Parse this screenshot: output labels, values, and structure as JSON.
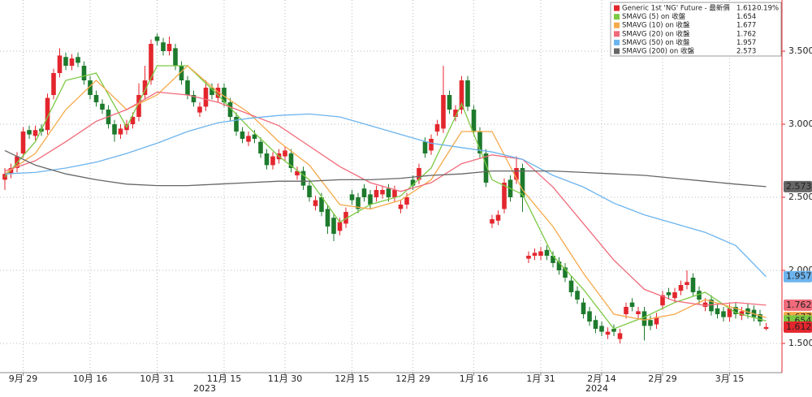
{
  "chart_data": {
    "type": "candlestick",
    "candle_name": "Generic 1st 'NG' Future - 最新價",
    "last_change_label": "-0.19%",
    "up_color": "#e3262d",
    "down_color": "#1d7a2c",
    "categories": [
      null,
      null,
      null,
      "9月 29",
      null,
      null,
      null,
      null,
      null,
      null,
      null,
      null,
      null,
      null,
      "10月 16",
      null,
      null,
      null,
      null,
      null,
      null,
      null,
      null,
      null,
      null,
      "10月 31",
      null,
      null,
      null,
      null,
      null,
      null,
      null,
      null,
      null,
      null,
      "11月 15",
      null,
      null,
      null,
      null,
      null,
      null,
      null,
      null,
      null,
      "11月 30",
      null,
      null,
      null,
      null,
      null,
      null,
      null,
      null,
      null,
      null,
      "12月 15",
      null,
      null,
      null,
      null,
      null,
      null,
      null,
      null,
      null,
      "12月 29",
      null,
      null,
      null,
      null,
      null,
      null,
      null,
      null,
      null,
      "1月 16",
      null,
      null,
      null,
      null,
      null,
      null,
      null,
      null,
      null,
      null,
      "1月 31",
      null,
      null,
      null,
      null,
      null,
      null,
      null,
      null,
      null,
      "2月 14",
      null,
      null,
      null,
      null,
      null,
      null,
      null,
      null,
      null,
      "2月 29",
      null,
      null,
      null,
      null,
      null,
      null,
      null,
      null,
      null,
      null,
      "3月 15",
      null,
      null,
      null,
      null,
      null,
      null
    ],
    "x_year_labels": [
      "2023",
      "2024"
    ],
    "open": [
      2.62,
      2.66,
      2.7,
      2.8,
      2.96,
      2.92,
      2.97,
      2.96,
      3.2,
      3.35,
      3.46,
      3.4,
      3.46,
      3.4,
      3.3,
      3.2,
      3.14,
      3.1,
      3.0,
      2.93,
      2.96,
      3.0,
      3.05,
      3.2,
      3.3,
      3.6,
      3.56,
      3.5,
      3.52,
      3.4,
      3.3,
      3.2,
      3.08,
      3.12,
      3.25,
      3.18,
      3.25,
      3.15,
      3.05,
      2.95,
      2.88,
      2.93,
      2.88,
      2.8,
      2.72,
      2.76,
      2.78,
      2.8,
      2.65,
      2.68,
      2.58,
      2.44,
      2.5,
      2.42,
      2.36,
      2.27,
      2.32,
      2.52,
      2.5,
      2.56,
      2.52,
      2.5,
      2.52,
      2.56,
      2.5,
      2.42,
      2.45,
      2.62,
      2.62,
      2.88,
      2.82,
      2.95,
      2.97,
      3.2,
      3.05,
      3.1,
      3.3,
      3.1,
      2.95,
      2.8,
      2.32,
      2.34,
      2.42,
      2.62,
      2.62,
      2.7,
      2.08,
      2.1,
      2.1,
      2.14,
      2.1,
      2.06,
      2.02,
      1.93,
      1.86,
      1.78,
      1.72,
      1.66,
      1.62,
      1.56,
      1.6,
      1.53,
      1.7,
      1.78,
      1.7,
      1.72,
      1.66,
      1.63,
      1.76,
      1.85,
      1.81,
      1.86,
      1.9,
      1.95,
      1.86,
      1.75,
      1.8,
      1.74,
      1.72,
      1.68,
      1.75,
      1.69,
      1.74,
      1.73,
      1.7,
      1.6
    ],
    "high": [
      2.7,
      2.73,
      2.81,
      2.98,
      2.99,
      2.99,
      3.0,
      3.21,
      3.38,
      3.52,
      3.49,
      3.48,
      3.49,
      3.43,
      3.33,
      3.23,
      3.17,
      3.13,
      3.03,
      3.0,
      3.03,
      3.08,
      3.28,
      3.4,
      3.58,
      3.62,
      3.59,
      3.6,
      3.55,
      3.43,
      3.33,
      3.23,
      3.15,
      3.3,
      3.28,
      3.28,
      3.28,
      3.18,
      3.08,
      2.98,
      2.95,
      2.96,
      2.91,
      2.83,
      2.81,
      2.83,
      2.85,
      2.83,
      2.71,
      2.71,
      2.61,
      2.51,
      2.53,
      2.45,
      2.39,
      2.36,
      2.43,
      2.55,
      2.53,
      2.59,
      2.55,
      2.58,
      2.58,
      2.59,
      2.58,
      2.48,
      2.53,
      2.65,
      2.73,
      2.91,
      2.93,
      3.03,
      3.4,
      3.23,
      3.13,
      3.33,
      3.33,
      3.13,
      2.98,
      2.83,
      2.38,
      2.41,
      2.63,
      2.65,
      2.78,
      2.73,
      2.13,
      2.15,
      2.16,
      2.17,
      2.13,
      2.09,
      2.05,
      1.96,
      1.89,
      1.81,
      1.75,
      1.69,
      1.65,
      1.61,
      1.63,
      1.6,
      1.78,
      1.81,
      1.75,
      1.75,
      1.69,
      1.71,
      1.86,
      1.88,
      1.88,
      1.93,
      2.0,
      1.98,
      1.89,
      1.81,
      1.83,
      1.77,
      1.75,
      1.77,
      1.78,
      1.75,
      1.77,
      1.76,
      1.73,
      1.64
    ],
    "low": [
      2.55,
      2.63,
      2.67,
      2.77,
      2.9,
      2.89,
      2.92,
      2.93,
      3.17,
      3.32,
      3.37,
      3.37,
      3.39,
      3.27,
      3.17,
      3.12,
      3.07,
      2.97,
      2.88,
      2.9,
      2.93,
      2.97,
      3.02,
      3.17,
      3.27,
      3.54,
      3.47,
      3.47,
      3.37,
      3.27,
      3.17,
      3.12,
      3.05,
      3.09,
      3.17,
      3.15,
      3.12,
      3.02,
      2.92,
      2.87,
      2.85,
      2.87,
      2.77,
      2.69,
      2.69,
      2.73,
      2.75,
      2.67,
      2.62,
      2.55,
      2.47,
      2.41,
      2.37,
      2.25,
      2.2,
      2.24,
      2.29,
      2.45,
      2.39,
      2.47,
      2.42,
      2.47,
      2.49,
      2.47,
      2.47,
      2.39,
      2.42,
      2.55,
      2.59,
      2.77,
      2.79,
      2.92,
      2.94,
      3.07,
      3.02,
      3.07,
      3.09,
      2.92,
      2.77,
      2.57,
      2.29,
      2.31,
      2.39,
      2.47,
      2.59,
      2.4,
      2.05,
      2.07,
      2.07,
      2.07,
      2.02,
      1.97,
      1.92,
      1.82,
      1.77,
      1.67,
      1.62,
      1.57,
      1.55,
      1.53,
      1.55,
      1.5,
      1.67,
      1.72,
      1.67,
      1.52,
      1.59,
      1.6,
      1.73,
      1.8,
      1.78,
      1.83,
      1.87,
      1.82,
      1.77,
      1.72,
      1.69,
      1.67,
      1.65,
      1.65,
      1.67,
      1.66,
      1.67,
      1.65,
      1.62,
      1.59
    ],
    "close": [
      2.66,
      2.7,
      2.78,
      2.95,
      2.93,
      2.96,
      2.95,
      3.18,
      3.35,
      3.47,
      3.4,
      3.45,
      3.42,
      3.3,
      3.2,
      3.15,
      3.1,
      3.0,
      2.93,
      2.97,
      3.0,
      3.05,
      3.2,
      3.3,
      3.55,
      3.57,
      3.5,
      3.55,
      3.4,
      3.3,
      3.2,
      3.15,
      3.12,
      3.25,
      3.2,
      3.25,
      3.15,
      3.05,
      2.95,
      2.9,
      2.92,
      2.9,
      2.8,
      2.72,
      2.78,
      2.8,
      2.82,
      2.7,
      2.68,
      2.58,
      2.5,
      2.48,
      2.4,
      2.3,
      2.25,
      2.33,
      2.4,
      2.48,
      2.42,
      2.5,
      2.45,
      2.55,
      2.55,
      2.5,
      2.55,
      2.45,
      2.5,
      2.58,
      2.7,
      2.8,
      2.9,
      3.0,
      3.2,
      3.1,
      3.1,
      3.3,
      3.12,
      2.95,
      2.8,
      2.6,
      2.35,
      2.38,
      2.6,
      2.5,
      2.7,
      2.5,
      2.1,
      2.12,
      2.13,
      2.1,
      2.05,
      2.0,
      1.95,
      1.85,
      1.8,
      1.7,
      1.65,
      1.6,
      1.58,
      1.58,
      1.58,
      1.57,
      1.75,
      1.75,
      1.72,
      1.62,
      1.62,
      1.68,
      1.83,
      1.83,
      1.85,
      1.9,
      1.92,
      1.85,
      1.8,
      1.78,
      1.72,
      1.7,
      1.68,
      1.74,
      1.7,
      1.72,
      1.7,
      1.68,
      1.65,
      1.612
    ],
    "series": [
      {
        "name": "SMAVG (5)  on 收盤",
        "color": "#7cc943",
        "x": [
          0,
          5,
          10,
          15,
          20,
          25,
          30,
          35,
          40,
          45,
          50,
          55,
          60,
          65,
          70,
          75,
          80,
          85,
          90,
          95,
          100,
          105,
          110,
          115,
          120,
          125
        ],
        "values": [
          2.64,
          2.88,
          3.3,
          3.35,
          2.98,
          3.4,
          3.4,
          3.2,
          2.98,
          2.78,
          2.62,
          2.33,
          2.45,
          2.51,
          2.7,
          3.14,
          2.62,
          2.52,
          2.1,
          1.87,
          1.6,
          1.68,
          1.78,
          1.85,
          1.71,
          1.654
        ]
      },
      {
        "name": "SMAVG (10)  on 收盤",
        "color": "#f5a94a",
        "x": [
          0,
          5,
          10,
          15,
          20,
          25,
          30,
          35,
          40,
          45,
          50,
          55,
          60,
          65,
          70,
          75,
          80,
          85,
          90,
          95,
          100,
          105,
          110,
          115,
          120,
          125
        ],
        "values": [
          2.66,
          2.8,
          3.1,
          3.3,
          3.1,
          3.2,
          3.4,
          3.22,
          3.08,
          2.88,
          2.72,
          2.45,
          2.42,
          2.48,
          2.62,
          2.95,
          2.95,
          2.55,
          2.3,
          1.98,
          1.7,
          1.66,
          1.7,
          1.8,
          1.74,
          1.677
        ]
      },
      {
        "name": "SMAVG (20)  on 收盤",
        "color": "#f06a7a",
        "x": [
          0,
          5,
          10,
          15,
          20,
          25,
          30,
          35,
          40,
          45,
          50,
          55,
          60,
          65,
          70,
          75,
          80,
          85,
          90,
          95,
          100,
          105,
          110,
          115,
          120,
          125
        ],
        "values": [
          2.68,
          2.75,
          2.88,
          3.02,
          3.1,
          3.22,
          3.2,
          3.15,
          3.07,
          2.99,
          2.85,
          2.71,
          2.6,
          2.54,
          2.6,
          2.73,
          2.79,
          2.76,
          2.57,
          2.32,
          2.07,
          1.87,
          1.79,
          1.76,
          1.78,
          1.762
        ]
      },
      {
        "name": "SMAVG (50)  on 收盤",
        "color": "#6cb4ee",
        "x": [
          0,
          5,
          10,
          15,
          20,
          25,
          30,
          35,
          40,
          45,
          50,
          55,
          60,
          65,
          70,
          75,
          80,
          85,
          90,
          95,
          100,
          105,
          110,
          115,
          120,
          125
        ],
        "values": [
          2.66,
          2.67,
          2.7,
          2.74,
          2.8,
          2.87,
          2.95,
          3.01,
          3.04,
          3.06,
          3.07,
          3.05,
          2.99,
          2.93,
          2.87,
          2.84,
          2.81,
          2.76,
          2.65,
          2.57,
          2.46,
          2.38,
          2.32,
          2.26,
          2.17,
          1.957
        ]
      },
      {
        "name": "SMAVG (200)  on 收盤",
        "color": "#666666",
        "x": [
          0,
          5,
          10,
          15,
          20,
          25,
          30,
          35,
          40,
          45,
          50,
          55,
          60,
          65,
          70,
          75,
          80,
          85,
          90,
          95,
          100,
          105,
          110,
          115,
          120,
          125
        ],
        "values": [
          2.82,
          2.72,
          2.66,
          2.62,
          2.59,
          2.58,
          2.58,
          2.59,
          2.6,
          2.61,
          2.61,
          2.62,
          2.62,
          2.63,
          2.65,
          2.66,
          2.68,
          2.68,
          2.68,
          2.67,
          2.66,
          2.65,
          2.63,
          2.61,
          2.59,
          2.573
        ]
      }
    ],
    "ylim": [
      1.3,
      3.85
    ],
    "yticks": [
      {
        "value": 1.5,
        "label": "1.500"
      },
      {
        "value": 2,
        "label": "2.000"
      },
      {
        "value": 2.5,
        "label": "2.500"
      },
      {
        "value": 3,
        "label": "3.000"
      },
      {
        "value": 3.5,
        "label": "3.500"
      }
    ],
    "grid": true,
    "legend": "top-right"
  }
}
